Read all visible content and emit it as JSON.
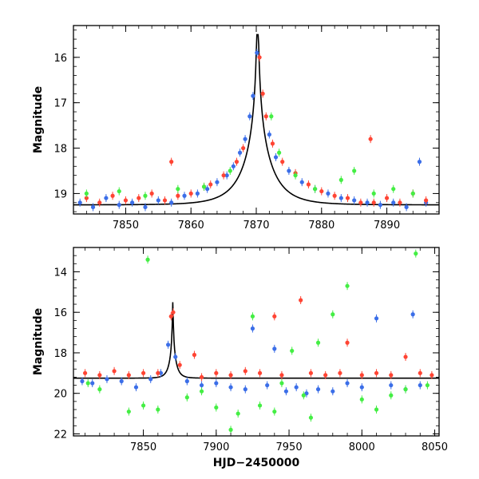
{
  "chart_data": [
    {
      "type": "scatter",
      "panel": "top",
      "xlabel": "",
      "ylabel": "Magnitude",
      "xlim": [
        7842,
        7898
      ],
      "ylim": [
        19.45,
        15.3
      ],
      "y_inverted": true,
      "x_ticks": [
        7850,
        7860,
        7870,
        7880,
        7890
      ],
      "x_tick_labels": [
        "7850",
        "7860",
        "7870",
        "7880",
        "7890"
      ],
      "y_ticks": [
        16,
        17,
        18,
        19
      ],
      "y_tick_labels": [
        "16",
        "17",
        "18",
        "19"
      ],
      "grid": false,
      "model_curve": {
        "color": "#000000",
        "peak_x": 7870.2,
        "peak_mag": 15.5,
        "baseline_mag": 19.25,
        "tE_days": 4.5
      },
      "series": [
        {
          "color": "#3b6ee8",
          "points": [
            [
              7843,
              19.2
            ],
            [
              7845,
              19.3
            ],
            [
              7847,
              19.1
            ],
            [
              7849,
              19.25
            ],
            [
              7851,
              19.2
            ],
            [
              7853,
              19.3
            ],
            [
              7855,
              19.15
            ],
            [
              7857,
              19.2
            ],
            [
              7859,
              19.05
            ],
            [
              7861,
              19.0
            ],
            [
              7862.5,
              18.9
            ],
            [
              7864,
              18.75
            ],
            [
              7865.5,
              18.6
            ],
            [
              7866.5,
              18.4
            ],
            [
              7867.5,
              18.1
            ],
            [
              7868.3,
              17.8
            ],
            [
              7869,
              17.3
            ],
            [
              7869.5,
              16.85
            ],
            [
              7870.1,
              15.9
            ],
            [
              7872,
              17.7
            ],
            [
              7873,
              18.2
            ],
            [
              7875,
              18.5
            ],
            [
              7877,
              18.75
            ],
            [
              7879,
              18.9
            ],
            [
              7881,
              19.0
            ],
            [
              7883,
              19.1
            ],
            [
              7885,
              19.15
            ],
            [
              7887,
              19.2
            ],
            [
              7889,
              19.25
            ],
            [
              7891,
              19.2
            ],
            [
              7893,
              19.3
            ],
            [
              7895,
              18.3
            ],
            [
              7896,
              19.2
            ]
          ]
        },
        {
          "color": "#ff4433",
          "points": [
            [
              7844,
              19.1
            ],
            [
              7846,
              19.2
            ],
            [
              7848,
              19.05
            ],
            [
              7850,
              19.15
            ],
            [
              7852,
              19.1
            ],
            [
              7854,
              19.0
            ],
            [
              7856,
              19.15
            ],
            [
              7857,
              18.3
            ],
            [
              7858,
              19.05
            ],
            [
              7860,
              19.0
            ],
            [
              7862,
              18.85
            ],
            [
              7863,
              18.8
            ],
            [
              7865,
              18.6
            ],
            [
              7867,
              18.3
            ],
            [
              7868,
              18.0
            ],
            [
              7870.5,
              16.0
            ],
            [
              7871,
              16.8
            ],
            [
              7871.5,
              17.3
            ],
            [
              7872.5,
              17.9
            ],
            [
              7874,
              18.3
            ],
            [
              7876,
              18.55
            ],
            [
              7878,
              18.8
            ],
            [
              7880,
              18.95
            ],
            [
              7882,
              19.05
            ],
            [
              7884,
              19.1
            ],
            [
              7886,
              19.2
            ],
            [
              7887.5,
              17.8
            ],
            [
              7888,
              19.2
            ],
            [
              7890,
              19.1
            ],
            [
              7892,
              19.2
            ],
            [
              7894,
              19.0
            ],
            [
              7896,
              19.15
            ]
          ]
        },
        {
          "color": "#44ee44",
          "points": [
            [
              7844,
              19.0
            ],
            [
              7849,
              18.95
            ],
            [
              7853,
              19.05
            ],
            [
              7858,
              18.9
            ],
            [
              7862,
              18.85
            ],
            [
              7866,
              18.5
            ],
            [
              7872.3,
              17.3
            ],
            [
              7873.5,
              18.1
            ],
            [
              7876,
              18.6
            ],
            [
              7879,
              18.9
            ],
            [
              7883,
              18.7
            ],
            [
              7885,
              18.5
            ],
            [
              7888,
              19.0
            ],
            [
              7891,
              18.9
            ],
            [
              7894,
              19.0
            ]
          ]
        }
      ]
    },
    {
      "type": "scatter",
      "panel": "bottom",
      "xlabel": "HJD−2450000",
      "ylabel": "Magnitude",
      "xlim": [
        7802,
        8053
      ],
      "ylim": [
        22.1,
        12.8
      ],
      "y_inverted": true,
      "x_ticks": [
        7850,
        7900,
        7950,
        8000,
        8050
      ],
      "x_tick_labels": [
        "7850",
        "7900",
        "7950",
        "8000",
        "8050"
      ],
      "y_ticks": [
        14,
        16,
        18,
        20,
        22
      ],
      "y_tick_labels": [
        "14",
        "16",
        "18",
        "20",
        "22"
      ],
      "grid": false,
      "model_curve": {
        "color": "#000000",
        "peak_x": 7870.2,
        "peak_mag": 15.5,
        "baseline_mag": 19.25,
        "tE_days": 4.5
      },
      "series": [
        {
          "color": "#3b6ee8",
          "points": [
            [
              7808,
              19.4
            ],
            [
              7815,
              19.5
            ],
            [
              7825,
              19.3
            ],
            [
              7835,
              19.4
            ],
            [
              7845,
              19.7
            ],
            [
              7855,
              19.3
            ],
            [
              7862,
              19.0
            ],
            [
              7867,
              17.6
            ],
            [
              7872,
              18.2
            ],
            [
              7880,
              19.4
            ],
            [
              7890,
              19.6
            ],
            [
              7900,
              19.5
            ],
            [
              7910,
              19.7
            ],
            [
              7920,
              19.8
            ],
            [
              7925,
              16.8
            ],
            [
              7935,
              19.6
            ],
            [
              7940,
              17.8
            ],
            [
              7948,
              19.9
            ],
            [
              7955,
              19.7
            ],
            [
              7962,
              20.0
            ],
            [
              7970,
              19.8
            ],
            [
              7980,
              19.9
            ],
            [
              7990,
              19.5
            ],
            [
              8000,
              19.7
            ],
            [
              8010,
              16.3
            ],
            [
              8020,
              19.6
            ],
            [
              8030,
              19.8
            ],
            [
              8035,
              16.1
            ],
            [
              8040,
              19.6
            ]
          ]
        },
        {
          "color": "#ff4433",
          "points": [
            [
              7810,
              19.0
            ],
            [
              7820,
              19.1
            ],
            [
              7830,
              18.9
            ],
            [
              7840,
              19.1
            ],
            [
              7850,
              19.0
            ],
            [
              7860,
              19.0
            ],
            [
              7869,
              16.2
            ],
            [
              7870.5,
              16.0
            ],
            [
              7875,
              18.6
            ],
            [
              7885,
              18.1
            ],
            [
              7890,
              19.2
            ],
            [
              7900,
              19.0
            ],
            [
              7910,
              19.1
            ],
            [
              7920,
              18.9
            ],
            [
              7930,
              19.0
            ],
            [
              7940,
              16.2
            ],
            [
              7945,
              19.1
            ],
            [
              7958,
              15.4
            ],
            [
              7965,
              19.0
            ],
            [
              7975,
              19.1
            ],
            [
              7985,
              19.0
            ],
            [
              7990,
              17.5
            ],
            [
              8000,
              19.1
            ],
            [
              8010,
              19.0
            ],
            [
              8020,
              19.1
            ],
            [
              8030,
              18.2
            ],
            [
              8040,
              19.0
            ],
            [
              8048,
              19.1
            ]
          ]
        },
        {
          "color": "#44ee44",
          "points": [
            [
              7812,
              19.5
            ],
            [
              7820,
              19.8
            ],
            [
              7840,
              20.9
            ],
            [
              7850,
              20.6
            ],
            [
              7853,
              13.4
            ],
            [
              7860,
              20.8
            ],
            [
              7880,
              20.2
            ],
            [
              7890,
              19.9
            ],
            [
              7900,
              20.7
            ],
            [
              7910,
              21.8
            ],
            [
              7915,
              21.0
            ],
            [
              7925,
              16.2
            ],
            [
              7930,
              20.6
            ],
            [
              7940,
              20.9
            ],
            [
              7945,
              19.5
            ],
            [
              7952,
              17.9
            ],
            [
              7960,
              20.1
            ],
            [
              7965,
              21.2
            ],
            [
              7970,
              17.5
            ],
            [
              7980,
              16.1
            ],
            [
              7990,
              14.7
            ],
            [
              8000,
              20.3
            ],
            [
              8010,
              20.8
            ],
            [
              8020,
              20.1
            ],
            [
              8030,
              19.8
            ],
            [
              8037,
              13.1
            ],
            [
              8045,
              19.6
            ]
          ]
        }
      ]
    }
  ]
}
